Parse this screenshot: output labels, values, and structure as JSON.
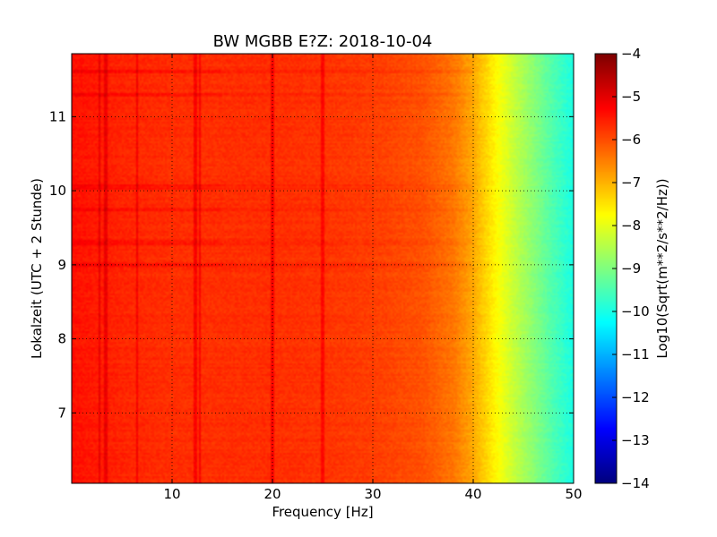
{
  "chart_data": {
    "type": "heatmap",
    "title": "BW MGBB E?Z: 2018-10-04",
    "xlabel": "Frequency [Hz]",
    "ylabel": "Lokalzeit (UTC + 2 Stunde)",
    "xlim": [
      0,
      50
    ],
    "ylim": [
      11.85,
      6.05
    ],
    "x_ticks": [
      "10",
      "20",
      "30",
      "40",
      "50"
    ],
    "x_tick_values": [
      10,
      20,
      30,
      40,
      50
    ],
    "y_ticks": [
      "7",
      "8",
      "9",
      "10",
      "11"
    ],
    "y_tick_values": [
      7,
      8,
      9,
      10,
      11
    ],
    "grid": true,
    "colormap": "jet",
    "colorbar": {
      "label": "Log10(Sqrt(m**2/s**2/Hz))",
      "range": [
        -14,
        -4
      ],
      "ticks": [
        "−4",
        "−5",
        "−6",
        "−7",
        "−8",
        "−9",
        "−10",
        "−11",
        "−12",
        "−13",
        "−14"
      ],
      "tick_values": [
        -4,
        -5,
        -6,
        -7,
        -8,
        -9,
        -10,
        -11,
        -12,
        -13,
        -14
      ]
    },
    "spectrum_profile": {
      "frequency_hz": [
        0,
        5,
        10,
        15,
        20,
        25,
        30,
        35,
        38,
        40,
        42,
        44,
        46,
        48,
        50
      ],
      "log10_amplitude": [
        -5.4,
        -5.6,
        -5.7,
        -5.7,
        -5.7,
        -5.75,
        -5.85,
        -6.05,
        -6.4,
        -6.9,
        -7.6,
        -8.3,
        -8.9,
        -9.5,
        -10.0
      ]
    },
    "vertical_lines_hz": [
      2.8,
      3.4,
      6.5,
      12.3,
      12.8,
      20.0,
      25.0
    ],
    "horizontal_bands_hour": [
      9.0,
      9.3,
      9.75,
      10.05,
      11.3,
      11.6
    ]
  }
}
